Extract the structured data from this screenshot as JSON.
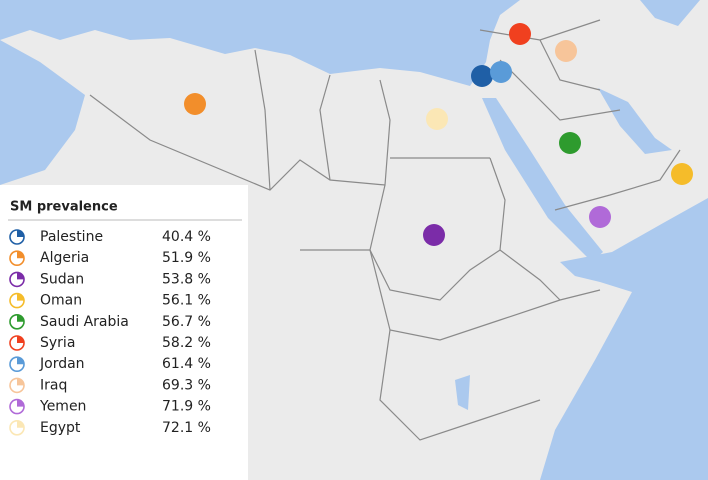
{
  "legend": {
    "title": "SM prevalence",
    "entries": [
      {
        "name": "Palestine",
        "value": 40.4,
        "value_label": "40.4 %",
        "color": "#1f5fa6"
      },
      {
        "name": "Algeria",
        "value": 51.9,
        "value_label": "51.9 %",
        "color": "#f28e2b"
      },
      {
        "name": "Sudan",
        "value": 53.8,
        "value_label": "53.8 %",
        "color": "#7b2ca8"
      },
      {
        "name": "Oman",
        "value": 56.1,
        "value_label": "56.1 %",
        "color": "#f5bc2a"
      },
      {
        "name": "Saudi Arabia",
        "value": 56.7,
        "value_label": "56.7 %",
        "color": "#2e9b2e"
      },
      {
        "name": "Syria",
        "value": 58.2,
        "value_label": "58.2 %",
        "color": "#f0401f"
      },
      {
        "name": "Jordan",
        "value": 61.4,
        "value_label": "61.4 %",
        "color": "#5a9bd8"
      },
      {
        "name": "Iraq",
        "value": 69.3,
        "value_label": "69.3 %",
        "color": "#f7c59a"
      },
      {
        "name": "Yemen",
        "value": 71.9,
        "value_label": "71.9 %",
        "color": "#b06ad8"
      },
      {
        "name": "Egypt",
        "value": 72.1,
        "value_label": "72.1 %",
        "color": "#fbe7b5"
      }
    ]
  }
}
